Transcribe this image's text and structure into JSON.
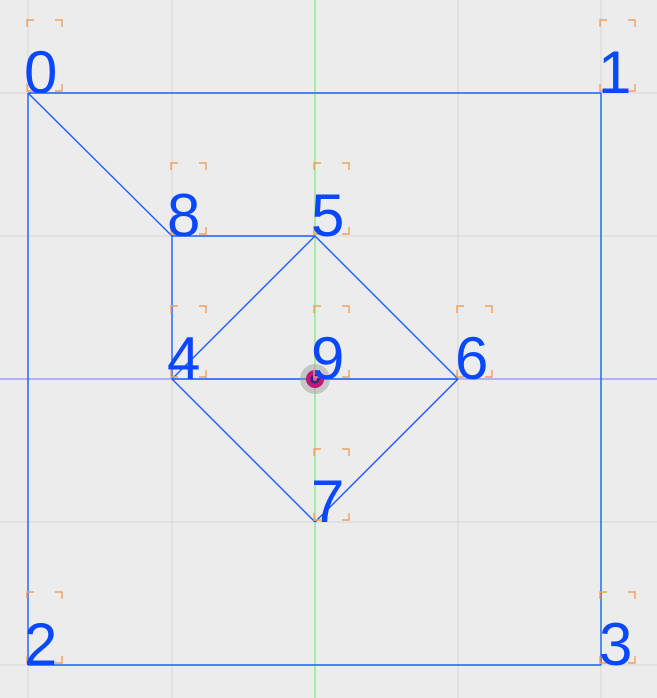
{
  "vertices": [
    {
      "label": "0"
    },
    {
      "label": "1"
    },
    {
      "label": "2"
    },
    {
      "label": "3"
    },
    {
      "label": "4"
    },
    {
      "label": "5"
    },
    {
      "label": "6"
    },
    {
      "label": "7"
    },
    {
      "label": "8"
    },
    {
      "label": "9"
    }
  ],
  "colors": {
    "background": "#ececec",
    "grid": "#d6d6d6",
    "edge": "#1a5cff",
    "label": "#0a48ff",
    "bracket": "#f0a060",
    "axis_x": "#8f8fff",
    "axis_y": "#a6eba6",
    "origin_marker": "#c0187a"
  }
}
